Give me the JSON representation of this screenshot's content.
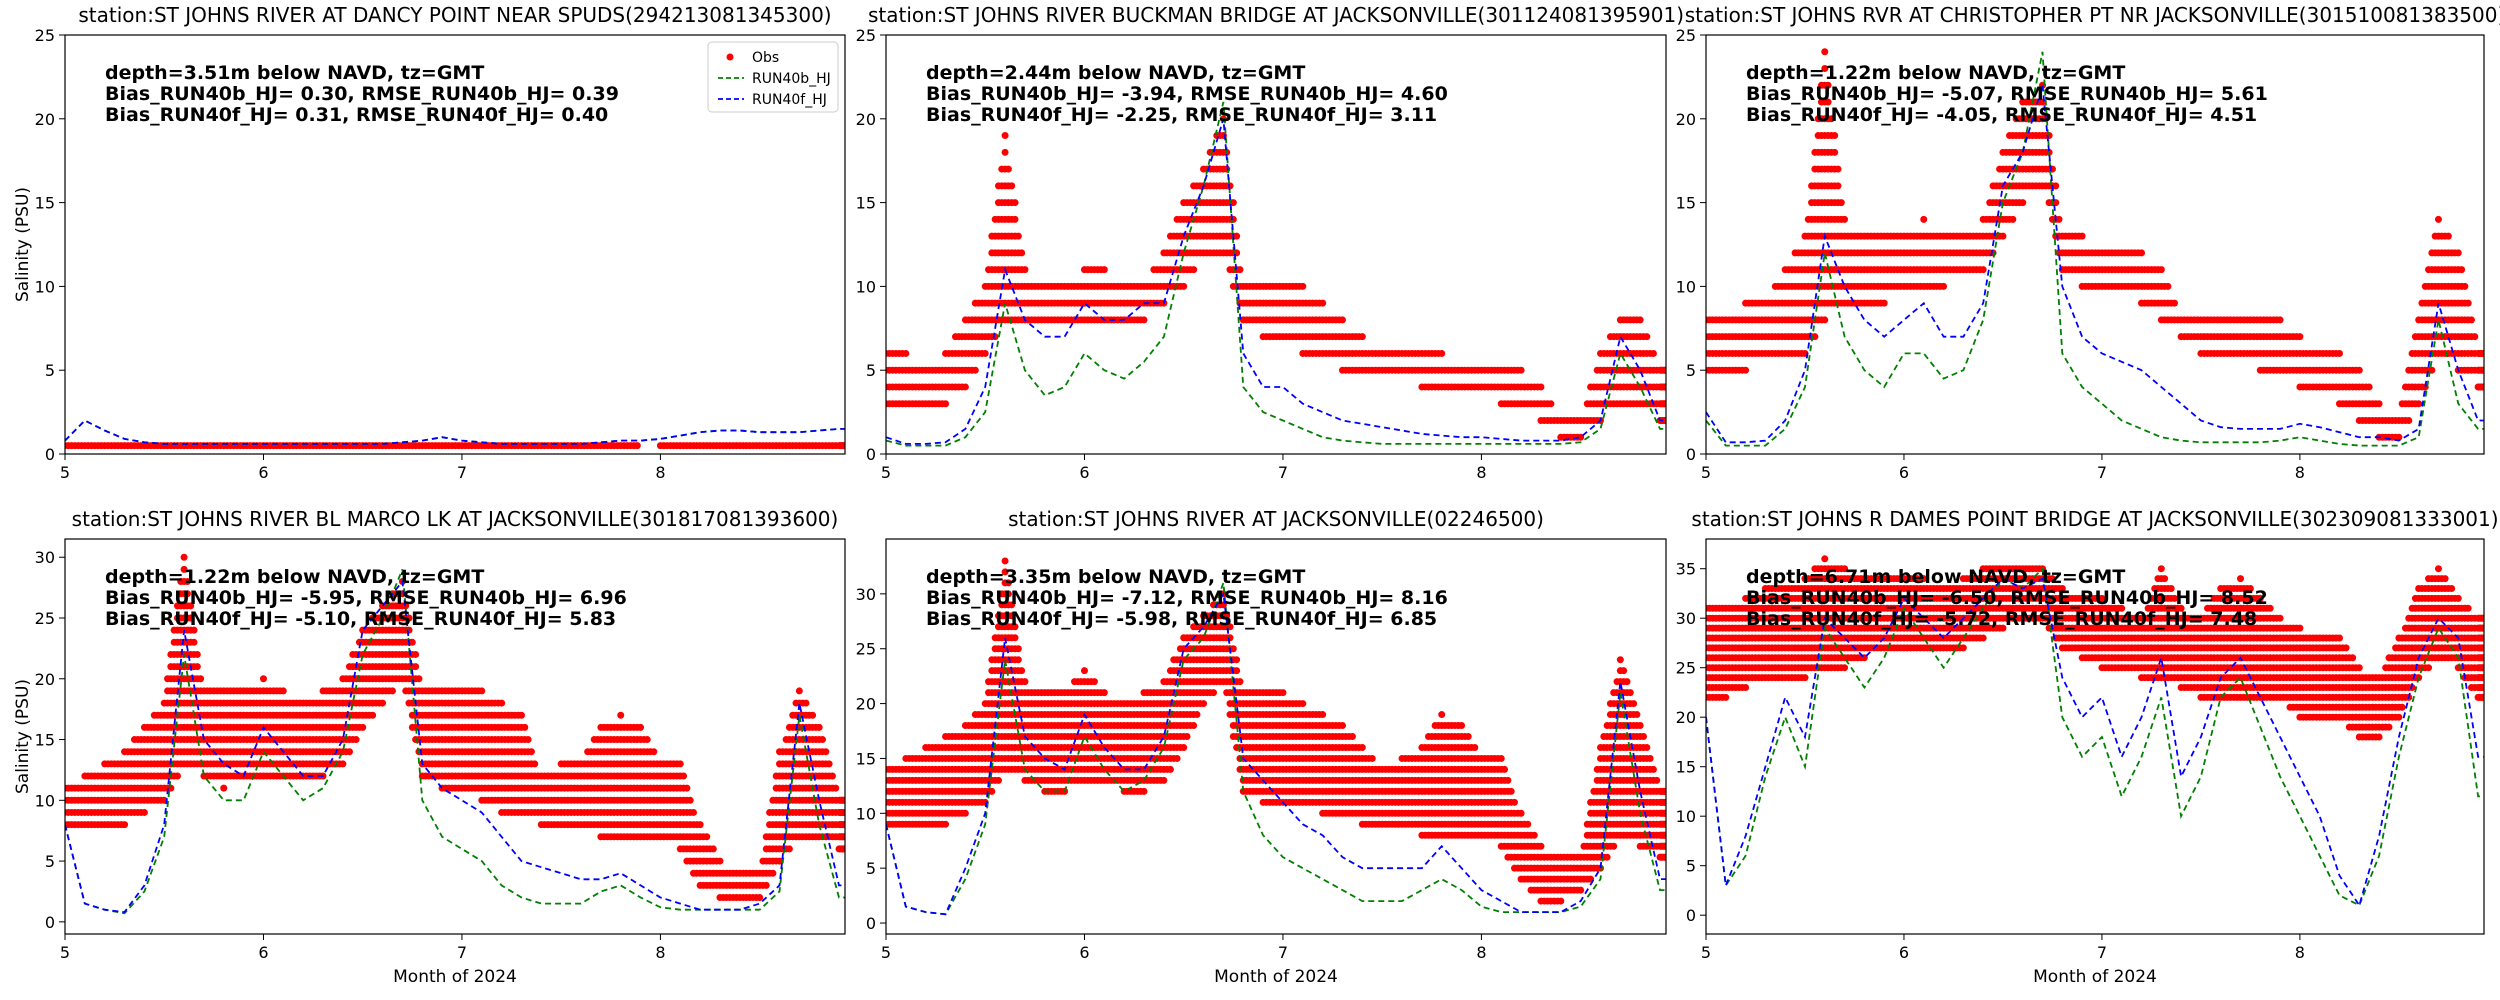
{
  "chart_data": [
    {
      "type": "line",
      "title": "station:ST JOHNS RIVER AT DANCY POINT NEAR SPUDS(294213081345300)",
      "annotation": [
        "depth=3.51m below NAVD, tz=GMT",
        "Bias_RUN40b_HJ=  0.30, RMSE_RUN40b_HJ=  0.39",
        "Bias_RUN40f_HJ=  0.31, RMSE_RUN40f_HJ=  0.40"
      ],
      "ylabel": "Salinity (PSU)",
      "xlabel": "",
      "xlim": [
        5,
        8.93
      ],
      "ylim": [
        0,
        25
      ],
      "xticks": [
        5,
        6,
        7,
        8
      ],
      "yticks": [
        0,
        5,
        10,
        15,
        20,
        25
      ],
      "legend": {
        "placement": "top-right",
        "entries": [
          "Obs",
          "RUN40b_HJ",
          "RUN40f_HJ"
        ]
      },
      "obs_low": [
        0.5,
        0.5,
        0.5,
        0.5,
        0.5,
        0.5,
        0.5,
        0.5,
        0.5,
        0.5,
        0.5,
        0.5,
        0.5,
        0.5,
        0.5,
        0.5,
        0.5,
        0.5,
        0.5,
        0.5,
        0.5,
        0.5,
        0.5,
        0.5,
        0.5,
        0.5,
        0.5,
        0.5,
        0.5,
        null,
        0.5,
        0.5,
        0.5,
        0.5,
        0.5,
        0.5,
        0.5,
        0.5,
        0.5,
        0.5
      ],
      "obs_high": [
        0.5,
        0.5,
        0.5,
        0.5,
        0.5,
        0.5,
        0.5,
        0.5,
        0.5,
        0.5,
        0.5,
        0.5,
        0.5,
        0.5,
        0.5,
        0.5,
        0.5,
        0.5,
        0.5,
        0.5,
        0.5,
        0.5,
        0.5,
        0.5,
        0.5,
        0.5,
        0.5,
        0.5,
        0.5,
        null,
        0.5,
        0.5,
        0.5,
        0.5,
        0.5,
        0.5,
        0.5,
        0.5,
        0.5,
        0.5
      ],
      "RUN40b_HJ": [
        0.8,
        2.0,
        1.4,
        0.9,
        0.7,
        0.6,
        0.6,
        0.6,
        0.6,
        0.6,
        0.6,
        0.6,
        0.6,
        0.6,
        0.6,
        0.6,
        0.6,
        0.7,
        0.8,
        1.0,
        0.8,
        0.7,
        0.6,
        0.6,
        0.6,
        0.6,
        0.6,
        0.7,
        0.8,
        0.8,
        0.9,
        1.1,
        1.3,
        1.4,
        1.4,
        1.3,
        1.3,
        1.3,
        1.4,
        1.5
      ],
      "RUN40f_HJ": [
        0.8,
        2.0,
        1.4,
        0.9,
        0.7,
        0.6,
        0.6,
        0.6,
        0.6,
        0.6,
        0.6,
        0.6,
        0.6,
        0.6,
        0.6,
        0.6,
        0.6,
        0.7,
        0.8,
        1.0,
        0.8,
        0.7,
        0.6,
        0.6,
        0.6,
        0.6,
        0.6,
        0.7,
        0.8,
        0.8,
        0.9,
        1.1,
        1.3,
        1.4,
        1.4,
        1.3,
        1.3,
        1.3,
        1.4,
        1.5
      ]
    },
    {
      "type": "line",
      "title": "station:ST JOHNS RIVER BUCKMAN BRIDGE AT JACKSONVILLE(301124081395901)",
      "annotation": [
        "depth=2.44m below NAVD, tz=GMT",
        "Bias_RUN40b_HJ= -3.94, RMSE_RUN40b_HJ=  4.60",
        "Bias_RUN40f_HJ= -2.25, RMSE_RUN40f_HJ=  3.11"
      ],
      "ylabel": "",
      "xlabel": "",
      "xlim": [
        5,
        8.93
      ],
      "ylim": [
        0,
        25
      ],
      "xticks": [
        5,
        6,
        7,
        8
      ],
      "yticks": [
        0,
        5,
        10,
        15,
        20,
        25
      ],
      "obs_low": [
        3,
        3,
        3,
        3,
        4,
        6,
        8,
        8,
        8,
        8,
        8,
        8,
        8,
        8,
        9,
        10,
        12,
        12,
        8,
        7,
        7,
        6,
        6,
        5,
        5,
        5,
        5,
        4,
        4,
        4,
        4,
        3,
        3,
        2,
        1,
        1,
        2,
        3,
        3,
        2
      ],
      "obs_high": [
        6,
        6,
        5,
        6,
        8,
        10,
        19,
        11,
        10,
        10,
        11,
        11,
        10,
        10,
        12,
        15,
        17,
        20,
        10,
        10,
        10,
        10,
        9,
        8,
        7,
        6,
        6,
        6,
        6,
        5,
        5,
        5,
        5,
        4,
        2,
        2,
        6,
        8,
        8,
        5
      ],
      "RUN40b_HJ": [
        0.8,
        0.5,
        0.5,
        0.5,
        1,
        2.5,
        9,
        5,
        3.5,
        4,
        6,
        5,
        4.5,
        5.5,
        7,
        12,
        16,
        21,
        4,
        2.5,
        2,
        1.5,
        1,
        0.8,
        0.7,
        0.6,
        0.6,
        0.6,
        0.6,
        0.6,
        0.6,
        0.6,
        0.6,
        0.6,
        0.6,
        0.7,
        1.5,
        6,
        4,
        1.5
      ],
      "RUN40f_HJ": [
        1,
        0.6,
        0.6,
        0.7,
        1.5,
        4,
        11,
        8,
        7,
        7,
        9,
        8,
        8,
        9,
        9,
        13,
        16,
        20,
        6,
        4,
        4,
        3,
        2.5,
        2,
        1.8,
        1.6,
        1.4,
        1.2,
        1.1,
        1,
        1,
        0.9,
        0.8,
        0.8,
        0.8,
        1,
        2,
        7,
        5,
        2
      ]
    },
    {
      "type": "line",
      "title": "station:ST JOHNS RVR AT CHRISTOPHER PT NR JACKSONVILLE(301510081383500)",
      "annotation": [
        "depth=1.22m below NAVD, tz=GMT",
        "Bias_RUN40b_HJ= -5.07, RMSE_RUN40b_HJ=  5.61",
        "Bias_RUN40f_HJ= -4.05, RMSE_RUN40f_HJ=  4.51"
      ],
      "ylabel": "",
      "xlabel": "",
      "xlim": [
        5,
        8.93
      ],
      "ylim": [
        0,
        25
      ],
      "xticks": [
        5,
        6,
        7,
        8
      ],
      "yticks": [
        0,
        5,
        10,
        15,
        20,
        25
      ],
      "obs_low": [
        5,
        5,
        5,
        6,
        6,
        6,
        8,
        9,
        9,
        9,
        10,
        10,
        10,
        11,
        11,
        13,
        15,
        16,
        11,
        10,
        10,
        10,
        9,
        8,
        7,
        6,
        6,
        6,
        5,
        5,
        4,
        4,
        3,
        2,
        1,
        1,
        3,
        6,
        5,
        4
      ],
      "obs_high": [
        8,
        8,
        9,
        9,
        11,
        13,
        24,
        14,
        13,
        13,
        13,
        14,
        13,
        13,
        14,
        18,
        21,
        22,
        13,
        13,
        12,
        12,
        12,
        11,
        8,
        8,
        8,
        8,
        8,
        8,
        7,
        6,
        6,
        5,
        3,
        2,
        8,
        14,
        12,
        6
      ],
      "RUN40b_HJ": [
        2,
        0.5,
        0.5,
        0.5,
        1.5,
        4,
        12,
        7,
        5,
        4,
        6,
        6,
        4.5,
        5,
        8,
        15,
        18,
        24,
        6,
        4,
        3,
        2,
        1.5,
        1,
        0.8,
        0.7,
        0.7,
        0.7,
        0.7,
        0.8,
        1,
        0.8,
        0.6,
        0.5,
        0.5,
        0.5,
        1,
        8,
        3,
        1.5
      ],
      "RUN40f_HJ": [
        2.5,
        0.7,
        0.7,
        0.8,
        2,
        5,
        13,
        10,
        8,
        7,
        8,
        9,
        7,
        7,
        9,
        16,
        18,
        22,
        10,
        7,
        6,
        5.5,
        5,
        4,
        3,
        2,
        1.6,
        1.5,
        1.5,
        1.5,
        1.8,
        1.6,
        1.3,
        1,
        1,
        0.8,
        1.5,
        9,
        5,
        2
      ]
    },
    {
      "type": "line",
      "title": "station:ST JOHNS RIVER BL MARCO LK AT JACKSONVILLE(301817081393600)",
      "annotation": [
        "depth=1.22m below NAVD, tz=GMT",
        "Bias_RUN40b_HJ= -5.95, RMSE_RUN40b_HJ=  6.96",
        "Bias_RUN40f_HJ= -5.10, RMSE_RUN40f_HJ=  5.83"
      ],
      "ylabel": "Salinity (PSU)",
      "xlabel": "Month of 2024",
      "xlim": [
        5,
        8.93
      ],
      "ylim": [
        -1,
        31.5
      ],
      "xticks": [
        5,
        6,
        7,
        8
      ],
      "yticks": [
        0,
        5,
        10,
        15,
        20,
        25,
        30
      ],
      "obs_low": [
        8,
        8,
        8,
        8,
        9,
        10,
        13,
        12,
        11,
        12,
        12,
        12,
        12,
        12,
        13,
        16,
        18,
        20,
        12,
        11,
        11,
        10,
        9,
        9,
        8,
        8,
        8,
        7,
        7,
        7,
        7,
        6,
        3,
        2,
        2,
        2,
        5,
        7,
        7,
        6
      ],
      "obs_high": [
        11,
        12,
        13,
        14,
        16,
        18,
        30,
        19,
        19,
        19,
        20,
        19,
        18,
        19,
        20,
        24,
        26,
        28,
        19,
        19,
        19,
        19,
        18,
        17,
        12,
        13,
        13,
        16,
        17,
        16,
        13,
        13,
        8,
        5,
        4,
        4,
        14,
        19,
        16,
        10
      ],
      "RUN40b_HJ": [
        8,
        1.5,
        1,
        0.7,
        2.5,
        7,
        22,
        12,
        10,
        10,
        14,
        12,
        10,
        11,
        14,
        22,
        25,
        29,
        10,
        7,
        6,
        5,
        3,
        2,
        1.5,
        1.5,
        1.5,
        2.5,
        3,
        2,
        1.2,
        1,
        1,
        1,
        1,
        1,
        2.5,
        17,
        8,
        2
      ],
      "RUN40f_HJ": [
        8,
        1.5,
        1,
        0.8,
        3,
        8,
        24,
        15,
        13,
        12,
        16,
        14,
        12,
        12,
        15,
        24,
        26,
        28,
        13,
        11,
        10,
        9,
        7,
        5,
        4.5,
        4,
        3.5,
        3.5,
        4,
        3,
        2,
        1.5,
        1,
        1,
        1,
        1.5,
        3,
        18,
        10,
        3
      ]
    },
    {
      "type": "line",
      "title": "station:ST JOHNS RIVER AT JACKSONVILLE(02246500)",
      "annotation": [
        "depth=3.35m below NAVD, tz=GMT",
        "Bias_RUN40b_HJ= -7.12, RMSE_RUN40b_HJ=  8.16",
        "Bias_RUN40f_HJ= -5.98, RMSE_RUN40f_HJ=  6.85"
      ],
      "ylabel": "",
      "xlabel": "Month of 2024",
      "xlim": [
        5,
        8.93
      ],
      "ylim": [
        -1,
        35
      ],
      "xticks": [
        5,
        6,
        7,
        8
      ],
      "yticks": [
        0,
        5,
        10,
        15,
        20,
        25,
        30
      ],
      "obs_low": [
        9,
        9,
        9,
        9,
        10,
        11,
        14,
        13,
        12,
        12,
        13,
        13,
        12,
        12,
        13,
        16,
        20,
        22,
        12,
        11,
        11,
        11,
        10,
        10,
        9,
        9,
        9,
        8,
        8,
        8,
        8,
        7,
        4,
        2,
        2,
        3,
        5,
        8,
        7,
        6
      ],
      "obs_high": [
        14,
        15,
        16,
        17,
        18,
        20,
        33,
        22,
        21,
        21,
        23,
        21,
        20,
        21,
        22,
        26,
        28,
        30,
        21,
        21,
        21,
        20,
        19,
        18,
        16,
        14,
        15,
        16,
        19,
        18,
        15,
        15,
        10,
        7,
        6,
        6,
        16,
        24,
        18,
        12
      ],
      "RUN40b_HJ": [
        9,
        1.5,
        1,
        0.8,
        4,
        9,
        24,
        14,
        12,
        12,
        17,
        14,
        12,
        13,
        16,
        24,
        26,
        31,
        12,
        8,
        6,
        5,
        4,
        3,
        2,
        2,
        2,
        3,
        4,
        3,
        1.5,
        1,
        1,
        1,
        1,
        1.5,
        4,
        21,
        10,
        3
      ],
      "RUN40f_HJ": [
        9,
        1.5,
        1,
        0.8,
        5,
        10,
        26,
        17,
        15,
        14,
        19,
        16,
        14,
        14,
        17,
        25,
        27,
        30,
        15,
        13,
        11,
        9,
        8,
        6,
        5,
        5,
        5,
        5,
        7,
        5,
        3,
        2,
        1,
        1,
        1,
        2,
        5,
        22,
        12,
        4
      ]
    },
    {
      "type": "line",
      "title": "station:ST JOHNS R DAMES POINT BRIDGE AT JACKSONVILLE(302309081333001)",
      "annotation": [
        "depth=6.71m below NAVD, tz=GMT",
        "Bias_RUN40b_HJ= -6.50, RMSE_RUN40b_HJ=  8.52",
        "Bias_RUN40f_HJ= -5.72, RMSE_RUN40f_HJ=  7.48"
      ],
      "ylabel": "",
      "xlabel": "Month of 2024",
      "xlim": [
        5,
        8.93
      ],
      "ylim": [
        -1.9,
        38
      ],
      "xticks": [
        5,
        6,
        7,
        8
      ],
      "yticks": [
        0,
        5,
        10,
        15,
        20,
        25,
        30,
        35
      ],
      "obs_low": [
        22,
        22,
        23,
        24,
        24,
        24,
        25,
        25,
        26,
        27,
        27,
        27,
        27,
        27,
        28,
        29,
        30,
        30,
        27,
        26,
        25,
        25,
        24,
        24,
        23,
        22,
        22,
        22,
        22,
        22,
        20,
        20,
        20,
        18,
        18,
        20,
        24,
        26,
        25,
        22
      ],
      "obs_high": [
        31,
        31,
        32,
        33,
        33,
        34,
        36,
        35,
        34,
        34,
        34,
        34,
        33,
        34,
        35,
        35,
        35,
        35,
        33,
        32,
        32,
        31,
        30,
        35,
        31,
        30,
        33,
        34,
        32,
        30,
        29,
        28,
        28,
        25,
        24,
        28,
        33,
        35,
        32,
        30
      ],
      "RUN40b_HJ": [
        20,
        3,
        6,
        14,
        20,
        15,
        29,
        26,
        23,
        26,
        31,
        28,
        25,
        28,
        31,
        34,
        33,
        35,
        20,
        16,
        18,
        12,
        16,
        22,
        10,
        14,
        22,
        24,
        19,
        14,
        10,
        6,
        2,
        1,
        6,
        16,
        24,
        29,
        26,
        12
      ],
      "RUN40f_HJ": [
        20,
        3,
        8,
        15,
        22,
        18,
        30,
        28,
        26,
        28,
        32,
        30,
        28,
        30,
        32,
        34,
        33,
        34,
        24,
        20,
        22,
        16,
        20,
        26,
        14,
        18,
        24,
        26,
        22,
        18,
        14,
        10,
        4,
        1,
        8,
        18,
        26,
        30,
        28,
        16
      ]
    }
  ],
  "x": [
    5.0,
    5.1,
    5.2,
    5.3,
    5.4,
    5.5,
    5.6,
    5.7,
    5.8,
    5.9,
    6.0,
    6.1,
    6.2,
    6.3,
    6.4,
    6.5,
    6.6,
    6.7,
    6.8,
    6.9,
    7.0,
    7.1,
    7.2,
    7.3,
    7.4,
    7.5,
    7.6,
    7.7,
    7.8,
    7.9,
    8.0,
    8.1,
    8.2,
    8.3,
    8.4,
    8.5,
    8.6,
    8.7,
    8.8,
    8.9
  ],
  "colors": {
    "obs": "#ff0000",
    "RUN40b_HJ": "#008000",
    "RUN40f_HJ": "#0000ff"
  }
}
